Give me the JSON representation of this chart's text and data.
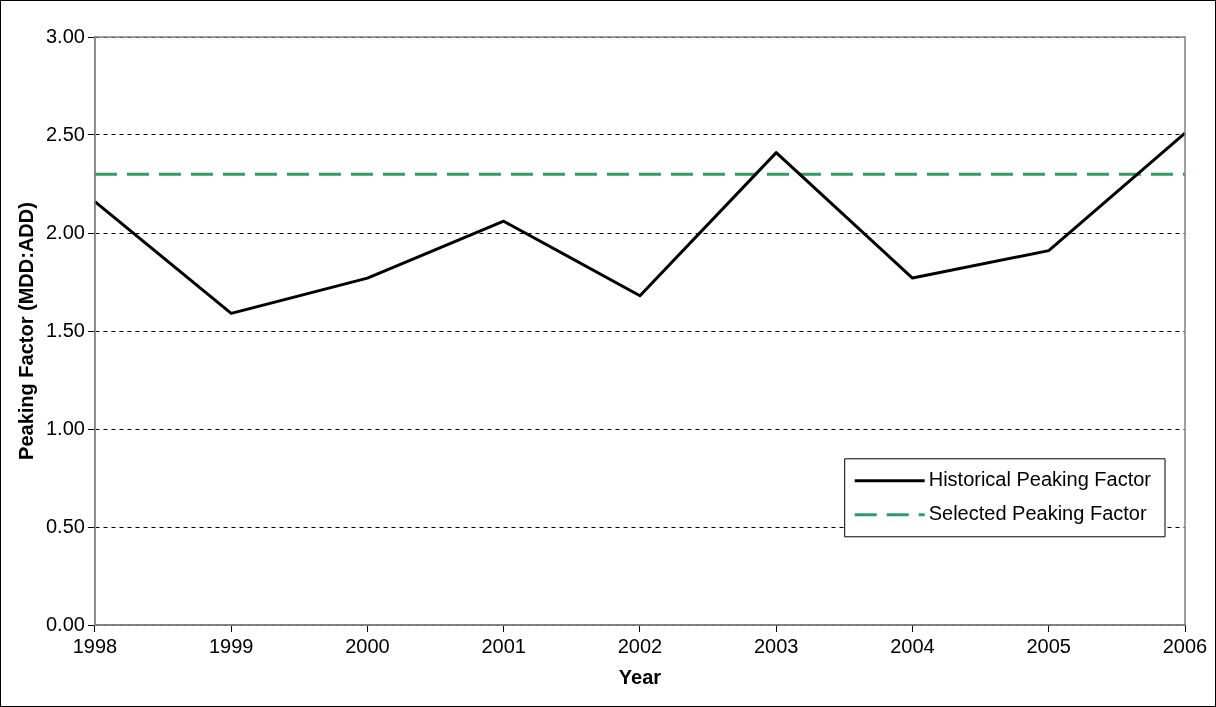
{
  "chart_data": {
    "type": "line",
    "xlabel": "Year",
    "ylabel": "Peaking Factor (MDD:ADD)",
    "categories": [
      "1998",
      "1999",
      "2000",
      "2001",
      "2002",
      "2003",
      "2004",
      "2005",
      "2006"
    ],
    "series": [
      {
        "name": "Historical Peaking Factor",
        "color": "#000000",
        "values": [
          2.16,
          1.59,
          1.77,
          2.06,
          1.68,
          2.41,
          1.77,
          1.91,
          2.51
        ],
        "line_style": "solid"
      },
      {
        "name": "Selected Peaking Factor",
        "color": "#339966",
        "values": [
          2.3,
          2.3,
          2.3,
          2.3,
          2.3,
          2.3,
          2.3,
          2.3,
          2.3
        ],
        "line_style": "dashed"
      }
    ],
    "ylim": [
      0,
      3
    ],
    "yticks": [
      {
        "value": 0,
        "label": "0.00"
      },
      {
        "value": 0.5,
        "label": "0.50"
      },
      {
        "value": 1,
        "label": "1.00"
      },
      {
        "value": 1.5,
        "label": "1.50"
      },
      {
        "value": 2,
        "label": "2.00"
      },
      {
        "value": 2.5,
        "label": "2.50"
      },
      {
        "value": 3,
        "label": "3.00"
      }
    ],
    "grid": "y",
    "legend": "bottom right",
    "marker": "none"
  }
}
